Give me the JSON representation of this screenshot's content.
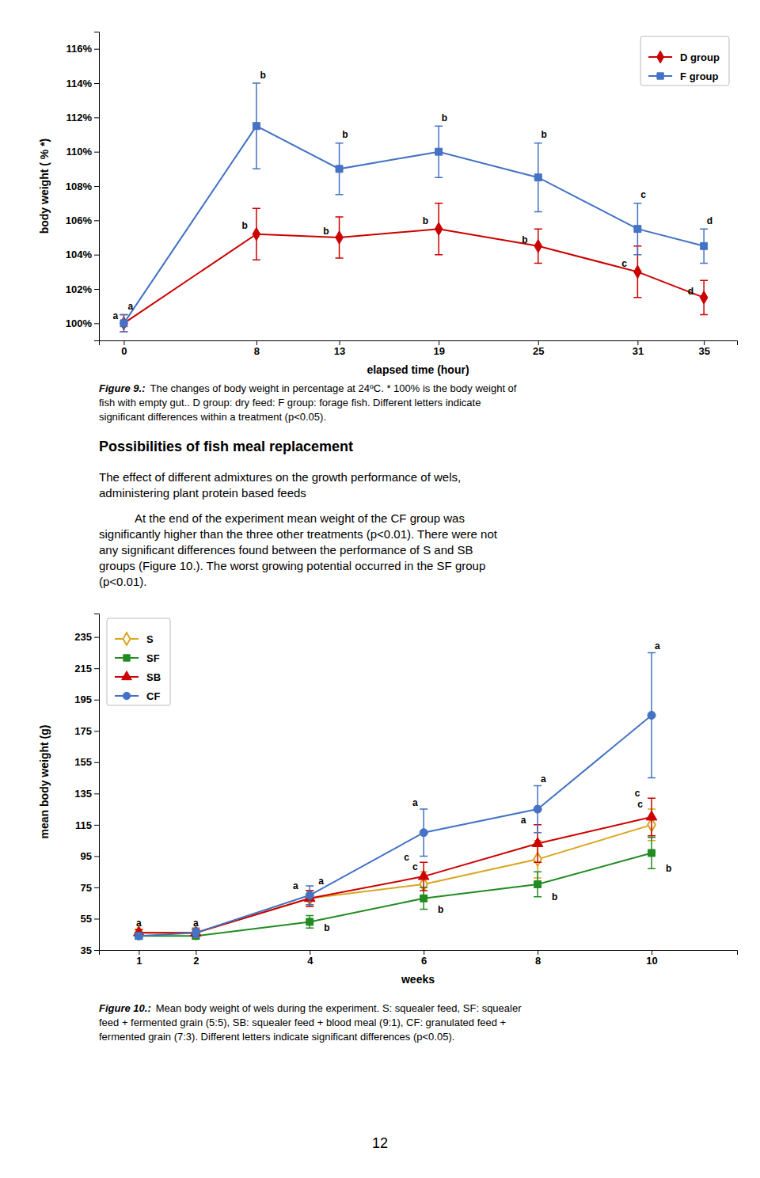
{
  "chart_data": [
    {
      "type": "line",
      "xlabel": "elapsed time (hour)",
      "ylabel": "body weight ( % *)",
      "x": [
        0,
        8,
        13,
        19,
        25,
        31,
        35
      ],
      "xlim": [
        -1.5,
        37
      ],
      "xticks": [
        0,
        8,
        13,
        19,
        25,
        31,
        35
      ],
      "ylim": [
        99,
        117
      ],
      "yticks": [
        {
          "value": 100,
          "label": "100%"
        },
        {
          "value": 102,
          "label": "102%"
        },
        {
          "value": 104,
          "label": "104%"
        },
        {
          "value": 106,
          "label": "106%"
        },
        {
          "value": 108,
          "label": "108%"
        },
        {
          "value": 110,
          "label": "110%"
        },
        {
          "value": 112,
          "label": "112%"
        },
        {
          "value": 114,
          "label": "114%"
        },
        {
          "value": 116,
          "label": "116%"
        }
      ],
      "grid": false,
      "legend": "upper-right",
      "series": [
        {
          "name": "D group",
          "color": "#cc0000",
          "marker": "diamond",
          "values": [
            100.0,
            105.2,
            105.0,
            105.5,
            104.5,
            103.0,
            101.5
          ],
          "errors": [
            0.5,
            1.5,
            1.2,
            1.5,
            1.0,
            1.5,
            1.0
          ]
        },
        {
          "name": "F group",
          "color": "#4472c4",
          "marker": "square",
          "values": [
            100.0,
            111.5,
            109.0,
            110.0,
            108.5,
            105.5,
            104.5
          ],
          "errors": [
            0.5,
            2.5,
            1.5,
            1.5,
            2.0,
            1.5,
            1.0
          ]
        }
      ],
      "annotations": [
        {
          "text": "a",
          "x": -0.5,
          "y": 100.25
        },
        {
          "text": "b",
          "x": 7.3,
          "y": 105.5
        },
        {
          "text": "b",
          "x": 12.2,
          "y": 105.2
        },
        {
          "text": "b",
          "x": 18.2,
          "y": 105.8
        },
        {
          "text": "b",
          "x": 24.2,
          "y": 104.7
        },
        {
          "text": "c",
          "x": 30.2,
          "y": 103.3
        },
        {
          "text": "d",
          "x": 34.2,
          "y": 101.7
        },
        {
          "text": "a",
          "x": 0.4,
          "y": 100.8
        },
        {
          "text": "b",
          "x": 8.4,
          "y": 114.3
        },
        {
          "text": "b",
          "x": 13.35,
          "y": 110.8
        },
        {
          "text": "b",
          "x": 19.35,
          "y": 111.8
        },
        {
          "text": "b",
          "x": 25.35,
          "y": 110.8
        },
        {
          "text": "c",
          "x": 31.35,
          "y": 107.3
        },
        {
          "text": "d",
          "x": 35.35,
          "y": 105.8
        }
      ],
      "caption": {
        "label": "Figure 9.:",
        "lines": [
          "The changes of body weight in percentage at 24ºC. * 100% is the body weight of",
          "fish with empty gut.. D group: dry feed: F group: forage fish. Different letters indicate",
          "significant differences within a treatment (p<0.05)."
        ]
      }
    },
    {
      "type": "line",
      "xlabel": "weeks",
      "ylabel": "mean body weight (g)",
      "x": [
        1,
        2,
        4,
        6,
        8,
        10
      ],
      "xlim": [
        0.3,
        11.5
      ],
      "xticks": [
        1,
        2,
        4,
        6,
        8,
        10
      ],
      "ylim": [
        35,
        250
      ],
      "yticks": [
        35,
        55,
        75,
        95,
        115,
        135,
        155,
        175,
        195,
        215,
        235
      ],
      "grid": false,
      "legend": "upper-left",
      "series": [
        {
          "name": "S",
          "color": "#daa520",
          "marker": "diamond-open",
          "values": [
            46.0,
            46.0,
            68.0,
            77.0,
            93.0,
            115.0
          ],
          "errors": [
            2.0,
            2.0,
            5.0,
            8.0,
            12.0,
            10.0
          ]
        },
        {
          "name": "SF",
          "color": "#228B22",
          "marker": "square",
          "values": [
            44.0,
            44.0,
            53.0,
            68.0,
            77.0,
            97.0
          ],
          "errors": [
            2.0,
            2.0,
            4.0,
            7.0,
            8.0,
            10.0
          ]
        },
        {
          "name": "SB",
          "color": "#cc0000",
          "marker": "triangle",
          "values": [
            46.0,
            46.0,
            68.0,
            82.0,
            103.0,
            120.0
          ],
          "errors": [
            2.0,
            2.0,
            5.0,
            9.0,
            12.0,
            12.0
          ]
        },
        {
          "name": "CF",
          "color": "#4472c4",
          "marker": "circle",
          "values": [
            44.0,
            46.0,
            70.0,
            110.0,
            125.0,
            185.0
          ],
          "errors": [
            2.0,
            3.0,
            6.0,
            15.0,
            15.0,
            40.0
          ]
        }
      ],
      "annotations": [
        {
          "text": "a",
          "x": 1.0,
          "y": 50
        },
        {
          "text": "a",
          "x": 2.0,
          "y": 50
        },
        {
          "text": "a",
          "x": 3.75,
          "y": 74
        },
        {
          "text": "a",
          "x": 4.2,
          "y": 77
        },
        {
          "text": "b",
          "x": 4.3,
          "y": 47
        },
        {
          "text": "a",
          "x": 5.85,
          "y": 127
        },
        {
          "text": "c",
          "x": 5.7,
          "y": 92
        },
        {
          "text": "c",
          "x": 5.85,
          "y": 86
        },
        {
          "text": "b",
          "x": 6.3,
          "y": 59
        },
        {
          "text": "a",
          "x": 8.1,
          "y": 142
        },
        {
          "text": "a",
          "x": 7.75,
          "y": 116
        },
        {
          "text": "b",
          "x": 8.3,
          "y": 67
        },
        {
          "text": "a",
          "x": 10.1,
          "y": 227
        },
        {
          "text": "c",
          "x": 9.75,
          "y": 133
        },
        {
          "text": "c",
          "x": 9.8,
          "y": 126
        },
        {
          "text": "b",
          "x": 10.3,
          "y": 85
        }
      ],
      "caption": {
        "label": "Figure 10.:",
        "lines": [
          "Mean body weight of wels during the experiment. S: squealer feed, SF: squealer",
          "feed + fermented grain (5:5), SB: squealer feed + blood meal (9:1), CF: granulated feed +",
          "fermented grain (7:3). Different letters indicate significant differences (p<0.05)."
        ]
      }
    }
  ],
  "section_title": "Possibilities of fish meal replacement",
  "paragraphs": [
    [
      "The effect of different admixtures on the growth performance of wels,",
      "administering plant protein based feeds"
    ],
    [
      "At the end of the experiment mean weight of the CF group was",
      "significantly higher than the three other treatments (p<0.01). There were not",
      "any significant differences found between the performance of S and SB",
      "groups (Figure 10.). The worst growing potential occurred in the SF group",
      "(p<0.01)."
    ]
  ],
  "page_number": "12"
}
